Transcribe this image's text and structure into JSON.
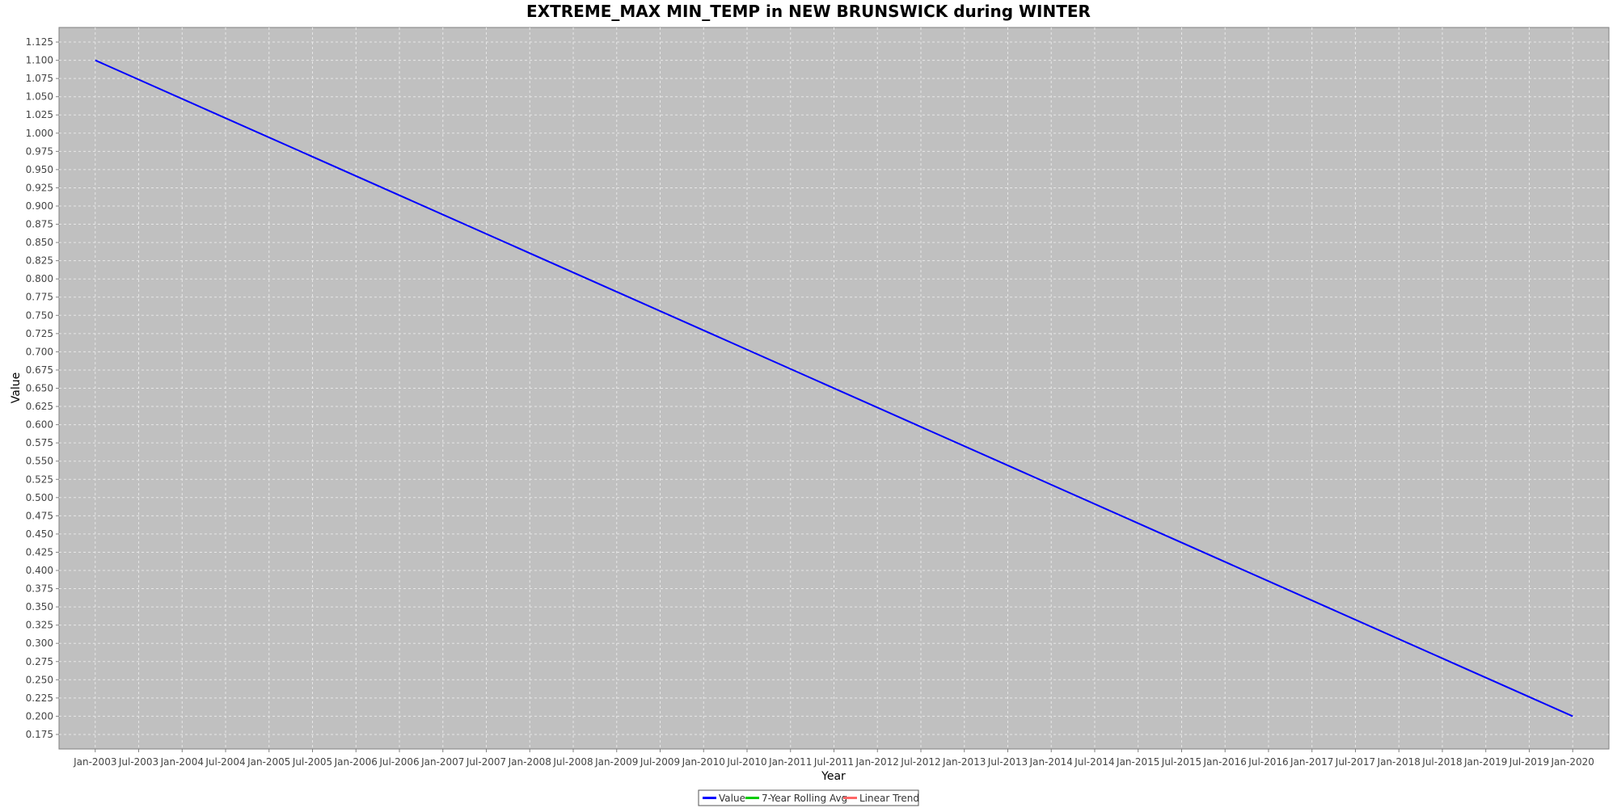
{
  "chart_data": {
    "type": "line",
    "title": "EXTREME_MAX MIN_TEMP in NEW BRUNSWICK during WINTER",
    "xlabel": "Year",
    "ylabel": "Value",
    "x_ticks": [
      "Jan-2003",
      "Jul-2003",
      "Jan-2004",
      "Jul-2004",
      "Jan-2005",
      "Jul-2005",
      "Jan-2006",
      "Jul-2006",
      "Jan-2007",
      "Jul-2007",
      "Jan-2008",
      "Jul-2008",
      "Jan-2009",
      "Jul-2009",
      "Jan-2010",
      "Jul-2010",
      "Jan-2011",
      "Jul-2011",
      "Jan-2012",
      "Jul-2012",
      "Jan-2013",
      "Jul-2013",
      "Jan-2014",
      "Jul-2014",
      "Jan-2015",
      "Jul-2015",
      "Jan-2016",
      "Jul-2016",
      "Jan-2017",
      "Jul-2017",
      "Jan-2018",
      "Jul-2018",
      "Jan-2019",
      "Jul-2019",
      "Jan-2020"
    ],
    "y_ticks": [
      "0.175",
      "0.200",
      "0.225",
      "0.250",
      "0.275",
      "0.300",
      "0.325",
      "0.350",
      "0.375",
      "0.400",
      "0.425",
      "0.450",
      "0.475",
      "0.500",
      "0.525",
      "0.550",
      "0.575",
      "0.600",
      "0.625",
      "0.650",
      "0.675",
      "0.700",
      "0.725",
      "0.750",
      "0.775",
      "0.800",
      "0.825",
      "0.850",
      "0.875",
      "0.900",
      "0.925",
      "0.950",
      "0.975",
      "1.000",
      "1.025",
      "1.050",
      "1.075",
      "1.100",
      "1.125"
    ],
    "ylim": [
      0.155,
      1.145
    ],
    "xlim": [
      "2002-08",
      "2020-06"
    ],
    "grid": true,
    "legend_position": "bottom-center",
    "series": [
      {
        "name": "Value",
        "color": "#0000ff",
        "points": [
          {
            "x": "2003-01",
            "y": 1.1
          },
          {
            "x": "2020-01",
            "y": 0.2
          }
        ]
      },
      {
        "name": "7-Year Rolling Avg",
        "color": "#00cc00",
        "points": []
      },
      {
        "name": "Linear Trend",
        "color": "#ff6666",
        "points": []
      }
    ],
    "colors": {
      "plot_background": "#c0c0c0",
      "gridline": "#e6e6e6"
    }
  }
}
